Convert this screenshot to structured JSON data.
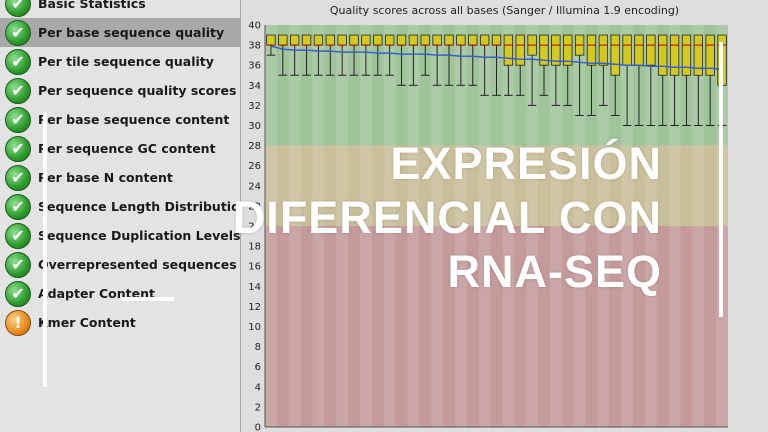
{
  "sidebar": {
    "items": [
      {
        "label": "Basic Statistics",
        "status": "pass",
        "selected": false
      },
      {
        "label": "Per base sequence quality",
        "status": "pass",
        "selected": true
      },
      {
        "label": "Per tile sequence quality",
        "status": "pass",
        "selected": false
      },
      {
        "label": "Per sequence quality scores",
        "status": "pass",
        "selected": false
      },
      {
        "label": "Per base sequence content",
        "status": "pass",
        "selected": false
      },
      {
        "label": "Per sequence GC content",
        "status": "pass",
        "selected": false
      },
      {
        "label": "Per base N content",
        "status": "pass",
        "selected": false
      },
      {
        "label": "Sequence Length Distribution",
        "status": "pass",
        "selected": false
      },
      {
        "label": "Sequence Duplication Levels",
        "status": "pass",
        "selected": false
      },
      {
        "label": "Overrepresented sequences",
        "status": "pass",
        "selected": false
      },
      {
        "label": "Adapter Content",
        "status": "pass",
        "selected": false
      },
      {
        "label": "Kmer Content",
        "status": "warn",
        "selected": false
      }
    ]
  },
  "icons": {
    "pass": "check-icon",
    "warn": "exclamation-icon"
  },
  "colors": {
    "good_zone": "#9fc49a",
    "ok_zone": "#c9bf9a",
    "poor_zone": "#c49a9a",
    "box_fill": "#d4c91f",
    "mean_line": "#3a5fcd",
    "selected_row": "#a9a9a9"
  },
  "overlay": {
    "lines": [
      "EXPRESIÓN",
      "DIFERENCIAL CON",
      "RNA-SEQ"
    ]
  },
  "chart_data": {
    "type": "boxplot",
    "title": "Quality scores across all bases (Sanger / Illumina 1.9 encoding)",
    "ylim": [
      0,
      40
    ],
    "yticks": [
      0,
      2,
      4,
      6,
      8,
      10,
      12,
      14,
      16,
      18,
      20,
      22,
      24,
      26,
      28,
      30,
      32,
      34,
      36,
      38,
      40
    ],
    "zones": [
      {
        "name": "good",
        "from": 28,
        "to": 40
      },
      {
        "name": "ok",
        "from": 20,
        "to": 28
      },
      {
        "name": "poor",
        "from": 0,
        "to": 20
      }
    ],
    "positions": 39,
    "q1": [
      38,
      38,
      38,
      38,
      38,
      38,
      38,
      38,
      38,
      38,
      38,
      38,
      38,
      38,
      38,
      38,
      38,
      38,
      38,
      38,
      36,
      36,
      37,
      36,
      36,
      36,
      37,
      36,
      36,
      35,
      36,
      36,
      36,
      35,
      35,
      35,
      35,
      35,
      34
    ],
    "q3": [
      39,
      39,
      39,
      39,
      39,
      39,
      39,
      39,
      39,
      39,
      39,
      39,
      39,
      39,
      39,
      39,
      39,
      39,
      39,
      39,
      39,
      39,
      39,
      39,
      39,
      39,
      39,
      39,
      39,
      39,
      39,
      39,
      39,
      39,
      39,
      39,
      39,
      39,
      39
    ],
    "median": [
      38,
      38,
      38,
      38,
      38,
      38,
      38,
      38,
      38,
      38,
      38,
      38,
      38,
      38,
      38,
      38,
      38,
      38,
      38,
      38,
      38,
      38,
      38,
      38,
      38,
      38,
      38,
      38,
      38,
      38,
      38,
      38,
      38,
      38,
      38,
      38,
      38,
      38,
      38
    ],
    "whisker_low": [
      37,
      35,
      35,
      35,
      35,
      35,
      35,
      35,
      35,
      35,
      35,
      34,
      34,
      35,
      34,
      34,
      34,
      34,
      33,
      33,
      33,
      33,
      32,
      33,
      32,
      32,
      31,
      31,
      32,
      31,
      30,
      30,
      30,
      30,
      30,
      30,
      30,
      30,
      30
    ],
    "whisker_high": [
      39,
      39,
      39,
      39,
      39,
      39,
      39,
      39,
      39,
      39,
      39,
      39,
      39,
      39,
      39,
      39,
      39,
      39,
      39,
      39,
      39,
      39,
      39,
      39,
      39,
      39,
      39,
      39,
      39,
      39,
      39,
      39,
      39,
      39,
      39,
      39,
      39,
      39,
      39
    ],
    "mean": [
      37.9,
      37.6,
      37.5,
      37.5,
      37.4,
      37.4,
      37.3,
      37.3,
      37.3,
      37.2,
      37.2,
      37.1,
      37.1,
      37.1,
      37.0,
      37.0,
      36.9,
      36.9,
      36.8,
      36.8,
      36.7,
      36.6,
      36.6,
      36.5,
      36.4,
      36.4,
      36.3,
      36.2,
      36.2,
      36.1,
      36.0,
      36.0,
      35.9,
      35.9,
      35.8,
      35.8,
      35.7,
      35.7,
      35.6
    ]
  }
}
